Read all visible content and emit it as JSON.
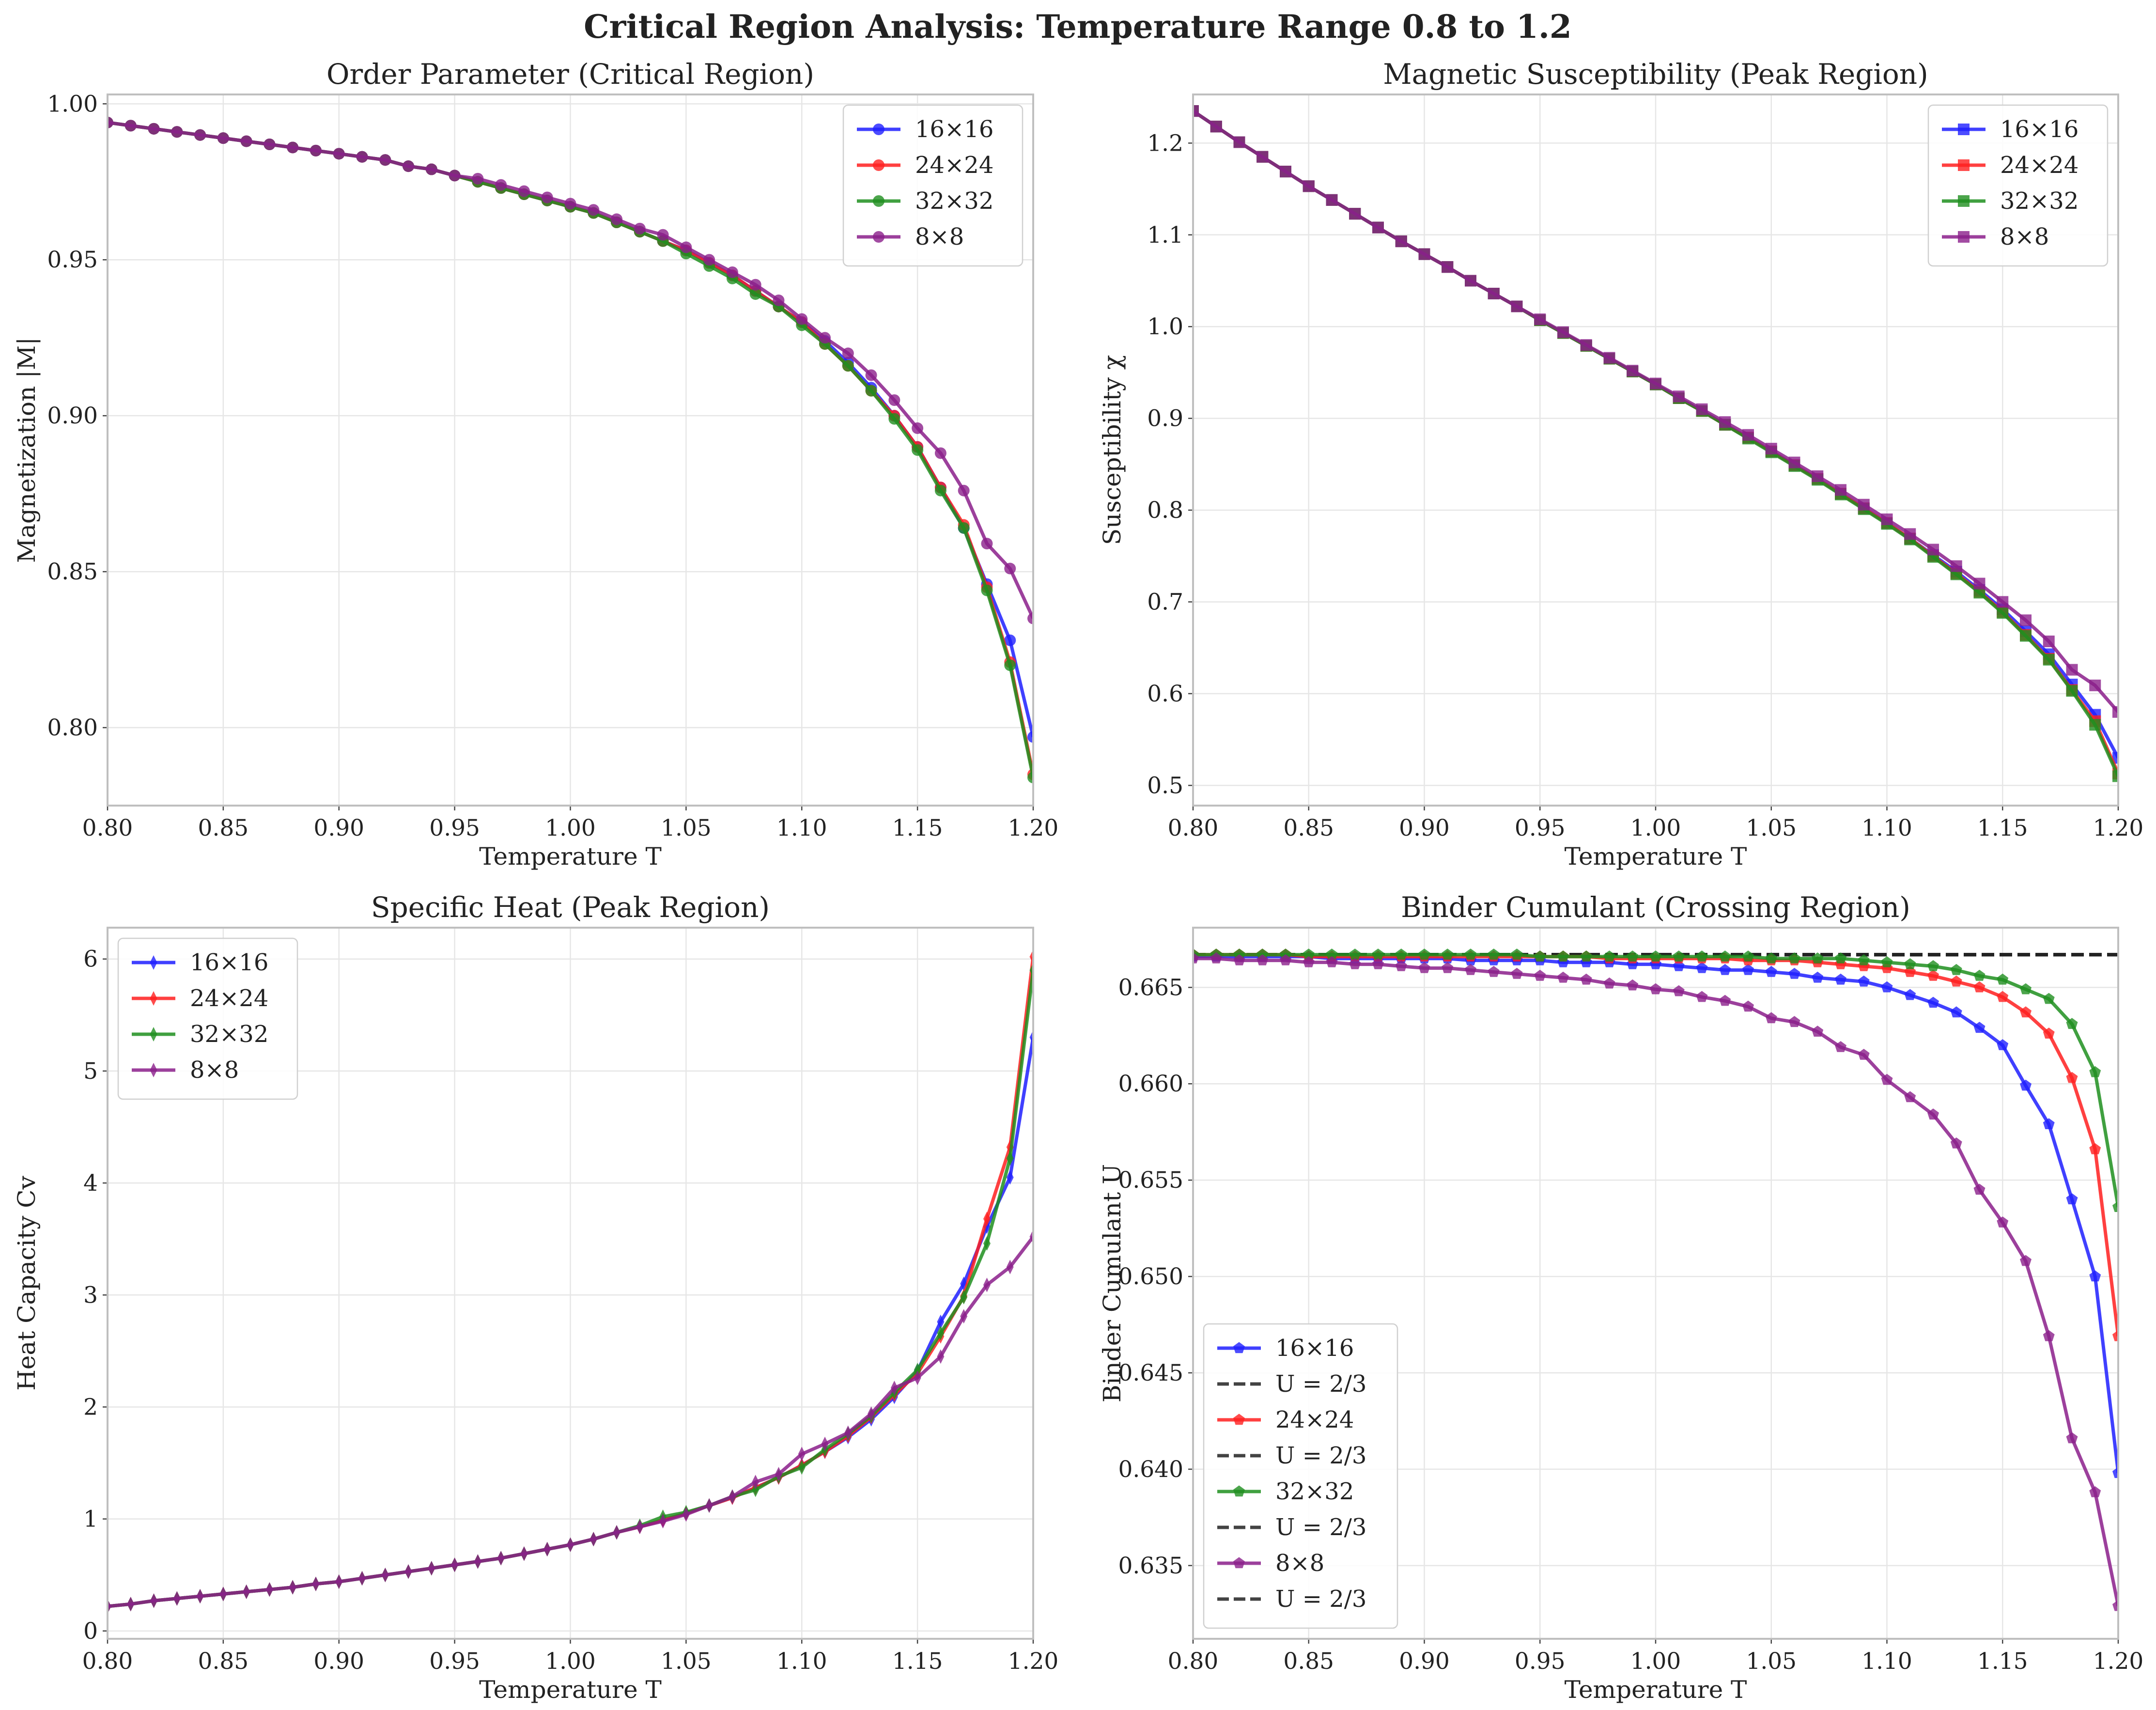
{
  "figure": {
    "suptitle": "Critical Region Analysis: Temperature Range 0.8 to 1.2"
  },
  "colors": {
    "16x16": "#1f1fff",
    "24x24": "#ff1f1f",
    "32x32": "#1f8f1f",
    "8x8": "#8b1f8b",
    "ref": "#222222"
  },
  "chart_data": [
    {
      "type": "line",
      "title": "Order Parameter (Critical Region)",
      "xlabel": "Temperature T",
      "ylabel": "Magnetization |M|",
      "xlim": [
        0.8,
        1.2
      ],
      "ylim": [
        0.775,
        1.003
      ],
      "xticks": [
        "0.80",
        "0.85",
        "0.90",
        "0.95",
        "1.00",
        "1.05",
        "1.10",
        "1.15",
        "1.20"
      ],
      "yticks": [
        "0.80",
        "0.85",
        "0.90",
        "0.95",
        "1.00"
      ],
      "marker": "circle",
      "legend_position": "upper right",
      "x": [
        0.8,
        0.81,
        0.82,
        0.83,
        0.84,
        0.85,
        0.86,
        0.87,
        0.88,
        0.89,
        0.9,
        0.91,
        0.92,
        0.93,
        0.94,
        0.95,
        0.96,
        0.97,
        0.98,
        0.99,
        1.0,
        1.01,
        1.02,
        1.03,
        1.04,
        1.05,
        1.06,
        1.07,
        1.08,
        1.09,
        1.1,
        1.11,
        1.12,
        1.13,
        1.14,
        1.15,
        1.16,
        1.17,
        1.18,
        1.19,
        1.2
      ],
      "series": [
        {
          "name": "16×16",
          "color": "#1f1fff",
          "values": [
            0.994,
            0.993,
            0.992,
            0.991,
            0.99,
            0.989,
            0.988,
            0.987,
            0.986,
            0.985,
            0.984,
            0.983,
            0.982,
            0.98,
            0.979,
            0.977,
            0.975,
            0.973,
            0.971,
            0.969,
            0.967,
            0.965,
            0.962,
            0.959,
            0.956,
            0.953,
            0.949,
            0.945,
            0.94,
            0.935,
            0.93,
            0.924,
            0.917,
            0.909,
            0.9,
            0.89,
            0.877,
            0.864,
            0.846,
            0.828,
            0.797
          ]
        },
        {
          "name": "24×24",
          "color": "#ff1f1f",
          "values": [
            0.994,
            0.993,
            0.992,
            0.991,
            0.99,
            0.989,
            0.988,
            0.987,
            0.986,
            0.985,
            0.984,
            0.983,
            0.982,
            0.98,
            0.979,
            0.977,
            0.975,
            0.973,
            0.971,
            0.969,
            0.967,
            0.965,
            0.962,
            0.959,
            0.956,
            0.953,
            0.949,
            0.945,
            0.94,
            0.935,
            0.93,
            0.923,
            0.916,
            0.908,
            0.9,
            0.89,
            0.877,
            0.865,
            0.845,
            0.821,
            0.785
          ]
        },
        {
          "name": "32×32",
          "color": "#1f8f1f",
          "values": [
            0.994,
            0.993,
            0.992,
            0.991,
            0.99,
            0.989,
            0.988,
            0.987,
            0.986,
            0.985,
            0.984,
            0.983,
            0.982,
            0.98,
            0.979,
            0.977,
            0.975,
            0.973,
            0.971,
            0.969,
            0.967,
            0.965,
            0.962,
            0.959,
            0.956,
            0.952,
            0.948,
            0.944,
            0.939,
            0.935,
            0.929,
            0.923,
            0.916,
            0.908,
            0.899,
            0.889,
            0.876,
            0.864,
            0.844,
            0.82,
            0.784
          ]
        },
        {
          "name": "8×8",
          "color": "#8b1f8b",
          "values": [
            0.994,
            0.993,
            0.992,
            0.991,
            0.99,
            0.989,
            0.988,
            0.987,
            0.986,
            0.985,
            0.984,
            0.983,
            0.982,
            0.98,
            0.979,
            0.977,
            0.976,
            0.974,
            0.972,
            0.97,
            0.968,
            0.966,
            0.963,
            0.96,
            0.958,
            0.954,
            0.95,
            0.946,
            0.942,
            0.937,
            0.931,
            0.925,
            0.92,
            0.913,
            0.905,
            0.896,
            0.888,
            0.876,
            0.859,
            0.851,
            0.835
          ]
        }
      ]
    },
    {
      "type": "line",
      "title": "Magnetic Susceptibility (Peak Region)",
      "xlabel": "Temperature T",
      "ylabel": "Susceptibility χ",
      "xlim": [
        0.8,
        1.2
      ],
      "ylim": [
        0.478,
        1.253
      ],
      "xticks": [
        "0.80",
        "0.85",
        "0.90",
        "0.95",
        "1.00",
        "1.05",
        "1.10",
        "1.15",
        "1.20"
      ],
      "yticks": [
        "0.5",
        "0.6",
        "0.7",
        "0.8",
        "0.9",
        "1.0",
        "1.1",
        "1.2"
      ],
      "marker": "square",
      "legend_position": "upper right",
      "x": [
        0.8,
        0.81,
        0.82,
        0.83,
        0.84,
        0.85,
        0.86,
        0.87,
        0.88,
        0.89,
        0.9,
        0.91,
        0.92,
        0.93,
        0.94,
        0.95,
        0.96,
        0.97,
        0.98,
        0.99,
        1.0,
        1.01,
        1.02,
        1.03,
        1.04,
        1.05,
        1.06,
        1.07,
        1.08,
        1.09,
        1.1,
        1.11,
        1.12,
        1.13,
        1.14,
        1.15,
        1.16,
        1.17,
        1.18,
        1.19,
        1.2
      ],
      "series": [
        {
          "name": "16×16",
          "color": "#1f1fff",
          "values": [
            1.235,
            1.218,
            1.201,
            1.185,
            1.169,
            1.153,
            1.138,
            1.123,
            1.108,
            1.093,
            1.079,
            1.065,
            1.05,
            1.036,
            1.022,
            1.007,
            0.993,
            0.979,
            0.965,
            0.951,
            0.937,
            0.922,
            0.908,
            0.893,
            0.879,
            0.864,
            0.849,
            0.834,
            0.818,
            0.802,
            0.786,
            0.769,
            0.751,
            0.733,
            0.713,
            0.692,
            0.668,
            0.643,
            0.61,
            0.577,
            0.53
          ]
        },
        {
          "name": "24×24",
          "color": "#ff1f1f",
          "values": [
            1.235,
            1.218,
            1.201,
            1.185,
            1.169,
            1.153,
            1.138,
            1.123,
            1.108,
            1.093,
            1.079,
            1.065,
            1.05,
            1.036,
            1.022,
            1.007,
            0.993,
            0.979,
            0.965,
            0.951,
            0.937,
            0.922,
            0.908,
            0.893,
            0.879,
            0.864,
            0.849,
            0.834,
            0.818,
            0.802,
            0.786,
            0.769,
            0.75,
            0.731,
            0.711,
            0.689,
            0.664,
            0.638,
            0.604,
            0.57,
            0.513
          ]
        },
        {
          "name": "32×32",
          "color": "#1f8f1f",
          "values": [
            1.235,
            1.218,
            1.201,
            1.185,
            1.169,
            1.153,
            1.138,
            1.123,
            1.108,
            1.093,
            1.079,
            1.065,
            1.05,
            1.036,
            1.022,
            1.007,
            0.993,
            0.979,
            0.965,
            0.951,
            0.937,
            0.922,
            0.908,
            0.893,
            0.878,
            0.863,
            0.848,
            0.833,
            0.817,
            0.801,
            0.785,
            0.768,
            0.749,
            0.73,
            0.71,
            0.688,
            0.663,
            0.637,
            0.603,
            0.566,
            0.51
          ]
        },
        {
          "name": "8×8",
          "color": "#8b1f8b",
          "values": [
            1.235,
            1.218,
            1.201,
            1.185,
            1.169,
            1.153,
            1.138,
            1.123,
            1.108,
            1.093,
            1.079,
            1.065,
            1.05,
            1.036,
            1.022,
            1.008,
            0.994,
            0.98,
            0.966,
            0.952,
            0.938,
            0.924,
            0.91,
            0.896,
            0.882,
            0.867,
            0.852,
            0.837,
            0.822,
            0.806,
            0.79,
            0.774,
            0.757,
            0.739,
            0.72,
            0.7,
            0.68,
            0.657,
            0.626,
            0.609,
            0.58
          ]
        }
      ]
    },
    {
      "type": "line",
      "title": "Specific Heat (Peak Region)",
      "xlabel": "Temperature T",
      "ylabel": "Heat Capacity Cv",
      "xlim": [
        0.8,
        1.2
      ],
      "ylim": [
        -0.07,
        6.28
      ],
      "xticks": [
        "0.80",
        "0.85",
        "0.90",
        "0.95",
        "1.00",
        "1.05",
        "1.10",
        "1.15",
        "1.20"
      ],
      "yticks": [
        "0",
        "1",
        "2",
        "3",
        "4",
        "5",
        "6"
      ],
      "marker": "thin_diamond",
      "legend_position": "upper left",
      "x": [
        0.8,
        0.81,
        0.82,
        0.83,
        0.84,
        0.85,
        0.86,
        0.87,
        0.88,
        0.89,
        0.9,
        0.91,
        0.92,
        0.93,
        0.94,
        0.95,
        0.96,
        0.97,
        0.98,
        0.99,
        1.0,
        1.01,
        1.02,
        1.03,
        1.04,
        1.05,
        1.06,
        1.07,
        1.08,
        1.09,
        1.1,
        1.11,
        1.12,
        1.13,
        1.14,
        1.15,
        1.16,
        1.17,
        1.18,
        1.19,
        1.2
      ],
      "series": [
        {
          "name": "16×16",
          "color": "#1f1fff",
          "values": [
            0.22,
            0.24,
            0.27,
            0.29,
            0.31,
            0.33,
            0.35,
            0.37,
            0.39,
            0.42,
            0.44,
            0.47,
            0.5,
            0.53,
            0.56,
            0.59,
            0.62,
            0.65,
            0.69,
            0.73,
            0.77,
            0.82,
            0.88,
            0.93,
            0.99,
            1.05,
            1.12,
            1.19,
            1.28,
            1.37,
            1.48,
            1.6,
            1.73,
            1.89,
            2.09,
            2.32,
            2.76,
            3.1,
            3.61,
            4.05,
            5.3
          ]
        },
        {
          "name": "24×24",
          "color": "#ff1f1f",
          "values": [
            0.22,
            0.24,
            0.27,
            0.29,
            0.31,
            0.33,
            0.35,
            0.37,
            0.39,
            0.42,
            0.44,
            0.47,
            0.5,
            0.53,
            0.56,
            0.59,
            0.62,
            0.65,
            0.69,
            0.73,
            0.77,
            0.82,
            0.88,
            0.93,
            0.99,
            1.05,
            1.12,
            1.19,
            1.28,
            1.37,
            1.48,
            1.6,
            1.74,
            1.91,
            2.11,
            2.3,
            2.63,
            2.99,
            3.68,
            4.32,
            6.02
          ]
        },
        {
          "name": "32×32",
          "color": "#1f8f1f",
          "values": [
            0.22,
            0.24,
            0.27,
            0.29,
            0.31,
            0.33,
            0.35,
            0.37,
            0.39,
            0.42,
            0.44,
            0.47,
            0.5,
            0.53,
            0.56,
            0.59,
            0.62,
            0.65,
            0.69,
            0.73,
            0.77,
            0.82,
            0.88,
            0.94,
            1.02,
            1.06,
            1.12,
            1.2,
            1.26,
            1.38,
            1.46,
            1.62,
            1.76,
            1.92,
            2.13,
            2.33,
            2.66,
            2.98,
            3.46,
            4.22,
            5.9
          ]
        },
        {
          "name": "8×8",
          "color": "#8b1f8b",
          "values": [
            0.22,
            0.24,
            0.27,
            0.29,
            0.31,
            0.33,
            0.35,
            0.37,
            0.39,
            0.42,
            0.44,
            0.47,
            0.5,
            0.53,
            0.56,
            0.59,
            0.62,
            0.65,
            0.69,
            0.73,
            0.77,
            0.82,
            0.88,
            0.93,
            0.98,
            1.04,
            1.12,
            1.2,
            1.33,
            1.4,
            1.58,
            1.67,
            1.77,
            1.94,
            2.17,
            2.26,
            2.45,
            2.81,
            3.09,
            3.25,
            3.52
          ]
        }
      ]
    },
    {
      "type": "line",
      "title": "Binder Cumulant (Crossing Region)",
      "xlabel": "Temperature T",
      "ylabel": "Binder Cumulant U",
      "xlim": [
        0.8,
        1.2
      ],
      "ylim": [
        0.6312,
        0.6681
      ],
      "xticks": [
        "0.80",
        "0.85",
        "0.90",
        "0.95",
        "1.00",
        "1.05",
        "1.10",
        "1.15",
        "1.20"
      ],
      "yticks": [
        "0.635",
        "0.640",
        "0.645",
        "0.650",
        "0.655",
        "0.660",
        "0.665"
      ],
      "marker": "pentagon",
      "legend_position": "lower left",
      "reference_line": {
        "label": "U = 2/3",
        "value": 0.6667
      },
      "legend": [
        "16×16",
        "U = 2/3",
        "24×24",
        "U = 2/3",
        "32×32",
        "U = 2/3",
        "8×8",
        "U = 2/3"
      ],
      "x": [
        0.8,
        0.81,
        0.82,
        0.83,
        0.84,
        0.85,
        0.86,
        0.87,
        0.88,
        0.89,
        0.9,
        0.91,
        0.92,
        0.93,
        0.94,
        0.95,
        0.96,
        0.97,
        0.98,
        0.99,
        1.0,
        1.01,
        1.02,
        1.03,
        1.04,
        1.05,
        1.06,
        1.07,
        1.08,
        1.09,
        1.1,
        1.11,
        1.12,
        1.13,
        1.14,
        1.15,
        1.16,
        1.17,
        1.18,
        1.19,
        1.2
      ],
      "series": [
        {
          "name": "16×16",
          "color": "#1f1fff",
          "values": [
            0.6666,
            0.6666,
            0.6666,
            0.6666,
            0.6666,
            0.6666,
            0.6665,
            0.6665,
            0.6665,
            0.6665,
            0.6665,
            0.6665,
            0.6664,
            0.6664,
            0.6664,
            0.6664,
            0.6663,
            0.6663,
            0.6663,
            0.6662,
            0.6662,
            0.6661,
            0.666,
            0.6659,
            0.6659,
            0.6658,
            0.6657,
            0.6655,
            0.6654,
            0.6653,
            0.665,
            0.6646,
            0.6642,
            0.6637,
            0.6629,
            0.662,
            0.6599,
            0.6579,
            0.654,
            0.65,
            0.6398
          ]
        },
        {
          "name": "24×24",
          "color": "#ff1f1f",
          "values": [
            0.6667,
            0.6667,
            0.6667,
            0.6667,
            0.6667,
            0.6666,
            0.6666,
            0.6666,
            0.6666,
            0.6666,
            0.6666,
            0.6666,
            0.6666,
            0.6666,
            0.6666,
            0.6666,
            0.6666,
            0.6666,
            0.6665,
            0.6665,
            0.6665,
            0.6665,
            0.6665,
            0.6665,
            0.6664,
            0.6664,
            0.6664,
            0.6663,
            0.6662,
            0.6661,
            0.666,
            0.6658,
            0.6656,
            0.6653,
            0.665,
            0.6645,
            0.6637,
            0.6626,
            0.6603,
            0.6566,
            0.6469
          ]
        },
        {
          "name": "32×32",
          "color": "#1f8f1f",
          "values": [
            0.6667,
            0.6667,
            0.6667,
            0.6667,
            0.6667,
            0.6667,
            0.6667,
            0.6667,
            0.6667,
            0.6667,
            0.6667,
            0.6667,
            0.6667,
            0.6667,
            0.6667,
            0.6666,
            0.6666,
            0.6666,
            0.6666,
            0.6666,
            0.6666,
            0.6666,
            0.6666,
            0.6666,
            0.6666,
            0.6665,
            0.6665,
            0.6665,
            0.6665,
            0.6664,
            0.6663,
            0.6662,
            0.6661,
            0.6659,
            0.6656,
            0.6654,
            0.6649,
            0.6644,
            0.6631,
            0.6606,
            0.6536
          ]
        },
        {
          "name": "8×8",
          "color": "#8b1f8b",
          "values": [
            0.6665,
            0.6665,
            0.6664,
            0.6664,
            0.6664,
            0.6663,
            0.6663,
            0.6662,
            0.6662,
            0.6661,
            0.666,
            0.666,
            0.6659,
            0.6658,
            0.6657,
            0.6656,
            0.6655,
            0.6654,
            0.6652,
            0.6651,
            0.6649,
            0.6648,
            0.6645,
            0.6643,
            0.664,
            0.6634,
            0.6632,
            0.6627,
            0.6619,
            0.6615,
            0.6602,
            0.6593,
            0.6584,
            0.6569,
            0.6545,
            0.6528,
            0.6508,
            0.6469,
            0.6416,
            0.6388,
            0.6329
          ]
        }
      ]
    }
  ]
}
